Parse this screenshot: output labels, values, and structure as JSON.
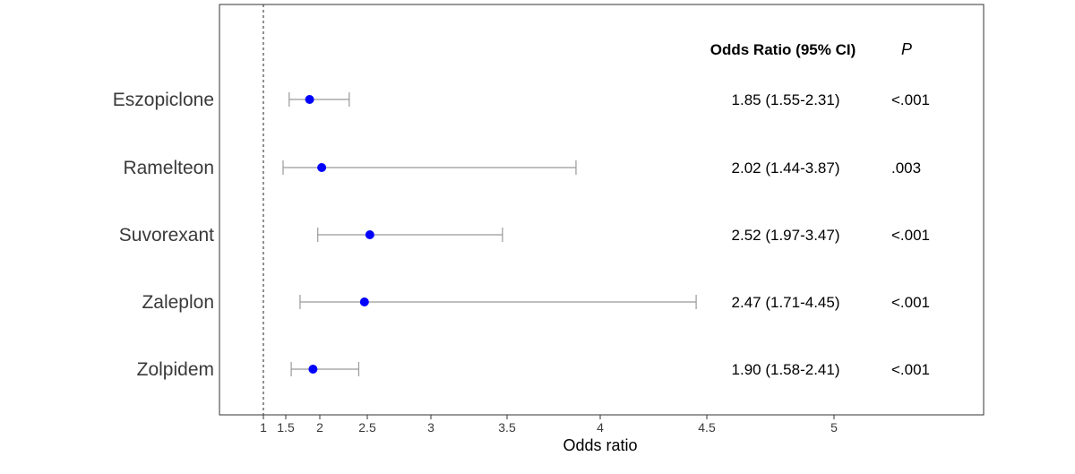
{
  "chart_data": {
    "type": "forest",
    "xlabel": "Odds ratio",
    "x_ticks": [
      1,
      1.5,
      2,
      2.5,
      3,
      3.5,
      4,
      4.5,
      5
    ],
    "x_tick_labels": [
      "1",
      "1.5",
      "2",
      "2.5",
      "3",
      "3.5",
      "4",
      "4.5",
      "5"
    ],
    "reference_line": 1,
    "reference_line_style": "dashed",
    "columns": {
      "or_header": "Odds Ratio (95% CI)",
      "p_header": "P"
    },
    "point_color": "#0000ff",
    "ci_color": "#999999",
    "rows": [
      {
        "label": "Eszopiclone",
        "or": 1.85,
        "lower": 1.55,
        "upper": 2.31,
        "or_text": "1.85 (1.55-2.31)",
        "p": "<.001"
      },
      {
        "label": "Ramelteon",
        "or": 2.02,
        "lower": 1.44,
        "upper": 3.87,
        "or_text": "2.02 (1.44-3.87)",
        "p": ".003"
      },
      {
        "label": "Suvorexant",
        "or": 2.52,
        "lower": 1.97,
        "upper": 3.47,
        "or_text": "2.52 (1.97-3.47)",
        "p": "<.001"
      },
      {
        "label": "Zaleplon",
        "or": 2.47,
        "lower": 1.71,
        "upper": 4.45,
        "or_text": "2.47 (1.71-4.45)",
        "p": "<.001"
      },
      {
        "label": "Zolpidem",
        "or": 1.9,
        "lower": 1.58,
        "upper": 2.41,
        "or_text": "1.90 (1.58-2.41)",
        "p": "<.001"
      }
    ]
  }
}
